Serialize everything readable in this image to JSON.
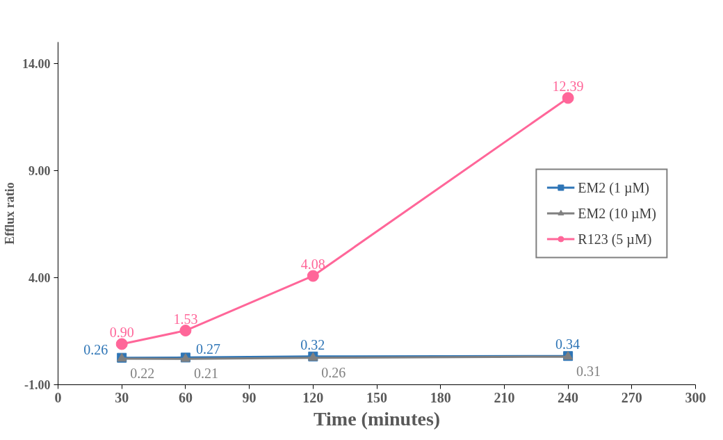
{
  "chart_data": {
    "type": "line",
    "xlabel": "Time (minutes)",
    "ylabel": "Efflux ratio",
    "x": [
      30,
      60,
      120,
      240
    ],
    "xlim": [
      0,
      300
    ],
    "xticks": [
      0,
      30,
      60,
      90,
      120,
      150,
      180,
      210,
      240,
      270,
      300
    ],
    "ylim": [
      -1,
      15
    ],
    "yticks": [
      {
        "value": -1,
        "label": "-1.00"
      },
      {
        "value": 4,
        "label": "4.00"
      },
      {
        "value": 9,
        "label": "9.00"
      },
      {
        "value": 14,
        "label": "14.00"
      }
    ],
    "series": [
      {
        "name": "EM2 (1 µM)",
        "color": "#2e75b6",
        "marker": "square",
        "values": [
          0.26,
          0.27,
          0.32,
          0.34
        ],
        "value_labels": [
          "0.26",
          "0.27",
          "0.32",
          "0.34"
        ]
      },
      {
        "name": "EM2 (10 µM)",
        "color": "#808080",
        "marker": "triangle",
        "values": [
          0.22,
          0.21,
          0.26,
          0.31
        ],
        "value_labels": [
          "0.22",
          "0.21",
          "0.26",
          "0.31"
        ]
      },
      {
        "name": "R123 (5 µM)",
        "color": "#ff6699",
        "marker": "circle",
        "values": [
          0.9,
          1.53,
          4.08,
          12.39
        ],
        "value_labels": [
          "0.90",
          "1.53",
          "4.08",
          "12.39"
        ]
      }
    ],
    "legend": "right",
    "grid": false,
    "line_style": "solid"
  }
}
